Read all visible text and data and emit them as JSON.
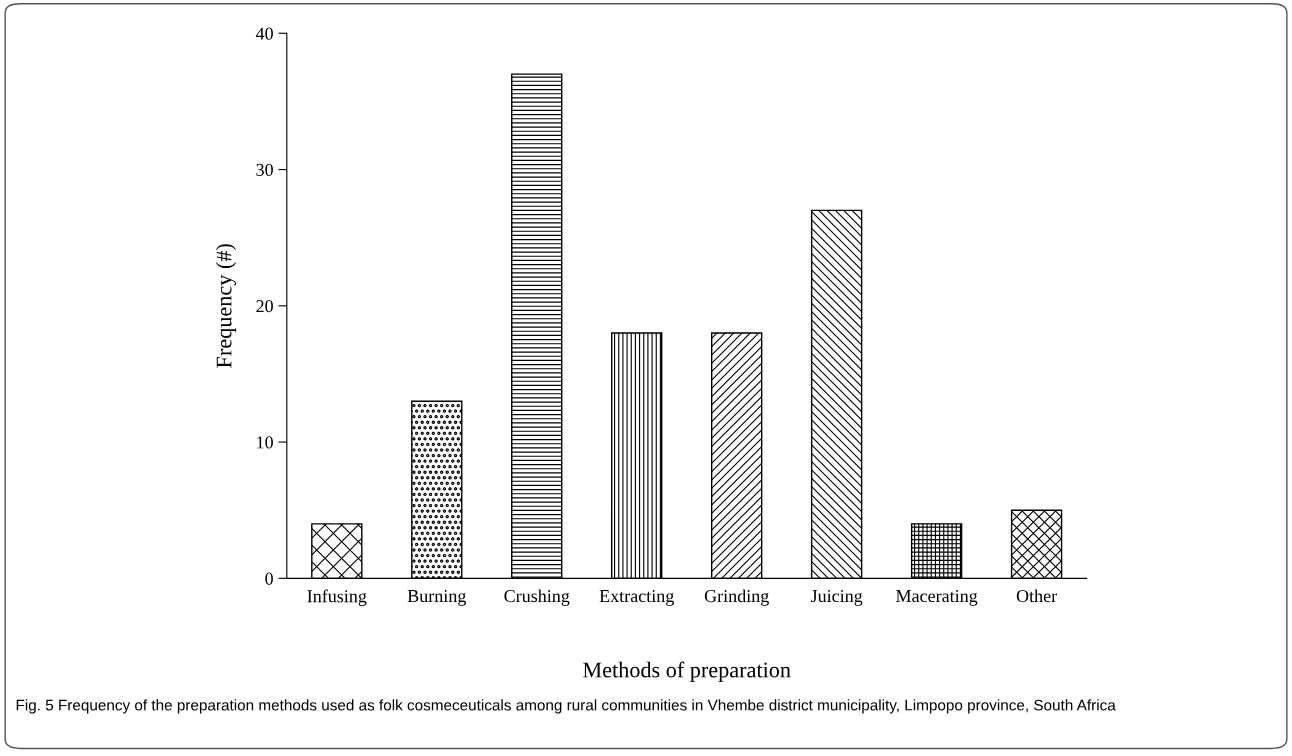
{
  "chart_data": {
    "type": "bar",
    "categories": [
      "Infusing",
      "Burning",
      "Crushing",
      "Extracting",
      "Grinding",
      "Juicing",
      "Macerating",
      "Other"
    ],
    "values": [
      4,
      13,
      37,
      18,
      18,
      27,
      4,
      5
    ],
    "color": "#000000",
    "xlabel": "Methods of preparation",
    "ylabel": "Frequency (#)",
    "ylim": [
      0,
      40
    ],
    "yticks": [
      0,
      10,
      20,
      30,
      40
    ],
    "grid": false,
    "annotations": [
      "Fig. 5 Frequency of the preparation methods used as folk cosmeceuticals among rural communities in Vhembe district municipality, Limpopo province, South Africa"
    ]
  }
}
